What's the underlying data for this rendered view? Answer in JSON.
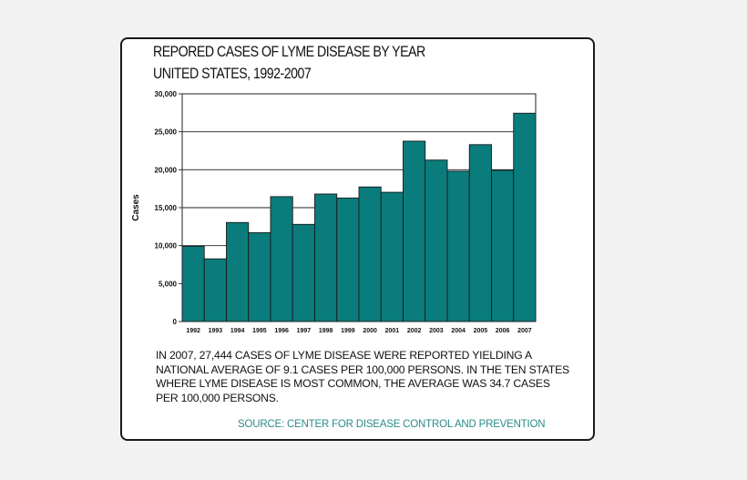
{
  "title_line1": "REPORED CASES OF LYME DISEASE BY YEAR",
  "title_line2": "UNITED STATES, 1992-2007",
  "caption": "IN 2007, 27,444 CASES OF LYME DISEASE WERE REPORTED YIELDING A NATIONAL AVERAGE OF 9.1 CASES PER 100,000 PERSONS. IN THE TEN STATES WHERE LYME DISEASE IS MOST COMMON, THE AVERAGE WAS 34.7 CASES PER 100,000 PERSONS.",
  "source": "SOURCE: CENTER FOR DISEASE CONTROL AND PREVENTION",
  "colors": {
    "bar": "#0a7c7c",
    "source_text": "#2a8a8a"
  },
  "chart_data": {
    "type": "bar",
    "categories": [
      "1992",
      "1993",
      "1994",
      "1995",
      "1996",
      "1997",
      "1998",
      "1999",
      "2000",
      "2001",
      "2002",
      "2003",
      "2004",
      "2005",
      "2006",
      "2007"
    ],
    "values": [
      9909,
      8257,
      13043,
      11700,
      16455,
      12801,
      16801,
      16273,
      17730,
      17029,
      23763,
      21273,
      19804,
      23305,
      19931,
      27444
    ],
    "ylabel": "Cases",
    "xlabel": "",
    "ylim": [
      0,
      30000
    ],
    "yticks": [
      0,
      5000,
      10000,
      15000,
      20000,
      25000,
      30000
    ],
    "ytick_labels": [
      "0",
      "5,000",
      "10,000",
      "15,000",
      "20,000",
      "25,000",
      "30,000"
    ],
    "grid": true
  }
}
